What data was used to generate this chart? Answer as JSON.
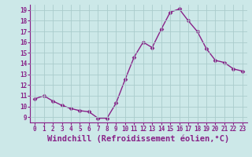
{
  "x": [
    0,
    1,
    2,
    3,
    4,
    5,
    6,
    7,
    8,
    9,
    10,
    11,
    12,
    13,
    14,
    15,
    16,
    17,
    18,
    19,
    20,
    21,
    22,
    23
  ],
  "y": [
    10.7,
    11.0,
    10.5,
    10.1,
    9.8,
    9.6,
    9.5,
    8.9,
    8.9,
    10.3,
    12.5,
    14.6,
    16.0,
    15.5,
    17.2,
    18.8,
    19.1,
    18.0,
    17.0,
    15.4,
    14.3,
    14.1,
    13.5,
    13.3
  ],
  "line_color": "#882288",
  "marker": "D",
  "markersize": 2.5,
  "linewidth": 1.0,
  "xlabel": "Windchill (Refroidissement éolien,°C)",
  "xlabel_fontsize": 7.5,
  "xlabel_color": "#882288",
  "yticks": [
    9,
    10,
    11,
    12,
    13,
    14,
    15,
    16,
    17,
    18,
    19
  ],
  "xtick_labels": [
    "0",
    "1",
    "2",
    "3",
    "4",
    "5",
    "6",
    "7",
    "8",
    "9",
    "10",
    "11",
    "12",
    "13",
    "14",
    "15",
    "16",
    "17",
    "18",
    "19",
    "20",
    "21",
    "22",
    "23"
  ],
  "xlim": [
    -0.5,
    23.5
  ],
  "ylim": [
    8.5,
    19.5
  ],
  "background_color": "#cce8e8",
  "grid_color": "#aacccc",
  "tick_fontsize": 5.5,
  "tick_color": "#882288"
}
